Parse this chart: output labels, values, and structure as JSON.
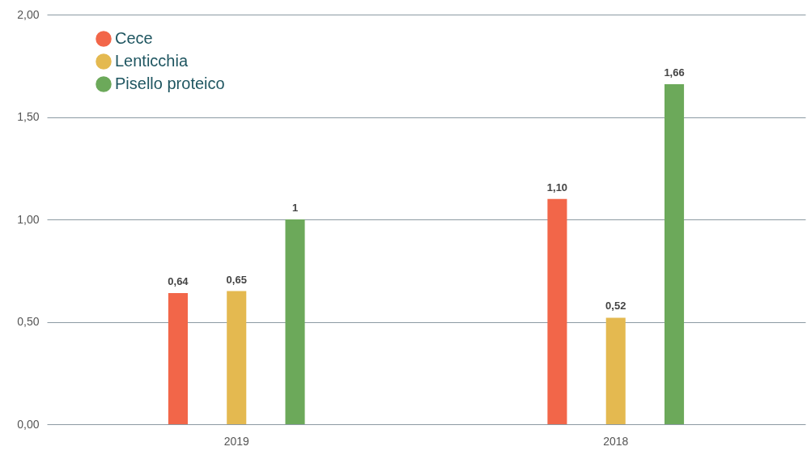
{
  "chart_data": {
    "type": "bar",
    "categories": [
      "2019",
      "2018"
    ],
    "series": [
      {
        "name": "Cece",
        "color": "#f26649",
        "values": [
          0.64,
          1.1
        ],
        "value_labels": [
          "0,64",
          "1,10"
        ]
      },
      {
        "name": "Lenticchia",
        "color": "#e4b950",
        "values": [
          0.65,
          0.52
        ],
        "value_labels": [
          "0,65",
          "0,52"
        ]
      },
      {
        "name": "Pisello proteico",
        "color": "#6ca95a",
        "values": [
          1,
          1.66
        ],
        "value_labels": [
          "1",
          "1,66"
        ]
      }
    ],
    "ylim": [
      0,
      2
    ],
    "yticks": [
      {
        "value": 0,
        "label": "0,00"
      },
      {
        "value": 0.5,
        "label": "0,50"
      },
      {
        "value": 1,
        "label": "1,00"
      },
      {
        "value": 1.5,
        "label": "1,50"
      },
      {
        "value": 2,
        "label": "2,00"
      }
    ],
    "grid": "y",
    "legend": "top left"
  }
}
